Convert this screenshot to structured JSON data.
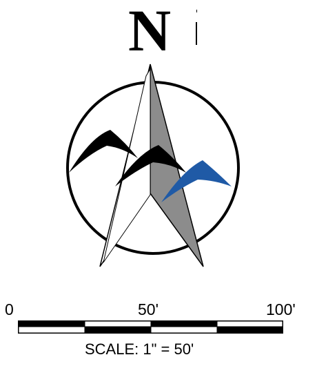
{
  "north_arrow": {
    "letter": "N"
  },
  "scale_bar": {
    "labels": [
      "0",
      "50'",
      "100'"
    ],
    "caption": "SCALE: 1\" = 50'"
  },
  "colors": {
    "outline": "#000000",
    "needle_fill": "#8c8c8c",
    "accent_bird": "#1f5aa6",
    "background": "#ffffff"
  }
}
